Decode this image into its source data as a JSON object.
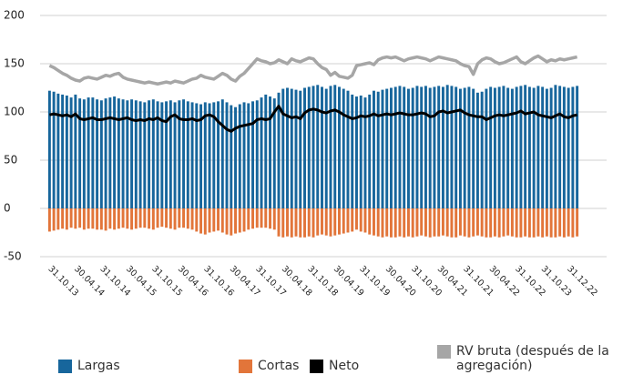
{
  "chart_data": {
    "type": "bar-line",
    "categories": [
      "31.10.13",
      null,
      null,
      null,
      null,
      null,
      "30.04.14",
      null,
      null,
      null,
      null,
      null,
      "31.10.14",
      null,
      null,
      null,
      null,
      null,
      "30.04.15",
      null,
      null,
      null,
      null,
      null,
      "31.10.15",
      null,
      null,
      null,
      null,
      null,
      "30.04.16",
      null,
      null,
      null,
      null,
      null,
      "31.10.16",
      null,
      null,
      null,
      null,
      null,
      "30.04.17",
      null,
      null,
      null,
      null,
      null,
      "31.10.17",
      null,
      null,
      null,
      null,
      null,
      "30.04.18",
      null,
      null,
      null,
      null,
      null,
      "31.10.18",
      null,
      null,
      null,
      null,
      null,
      "30.04.19",
      null,
      null,
      null,
      null,
      null,
      "31.10.19",
      null,
      null,
      null,
      null,
      null,
      "30.04.20",
      null,
      null,
      null,
      null,
      null,
      "31.10.20",
      null,
      null,
      null,
      null,
      null,
      "30.04.21",
      null,
      null,
      null,
      null,
      null,
      "31.10.21",
      null,
      null,
      null,
      null,
      null,
      "30.04.22",
      null,
      null,
      null,
      null,
      null,
      "31.10.22",
      null,
      null,
      null,
      null,
      null,
      "31.10.23",
      null,
      null,
      null,
      null,
      null,
      "31.12.22",
      null,
      null
    ],
    "series": [
      {
        "name": "Largas",
        "kind": "bar",
        "color": "#17669c",
        "values": [
          122,
          121,
          119,
          118,
          117,
          115,
          118,
          114,
          113,
          115,
          115,
          113,
          112,
          114,
          115,
          116,
          114,
          113,
          112,
          113,
          112,
          111,
          110,
          112,
          113,
          111,
          110,
          111,
          112,
          110,
          112,
          113,
          111,
          110,
          109,
          108,
          110,
          109,
          110,
          111,
          113,
          110,
          107,
          105,
          108,
          110,
          109,
          111,
          112,
          115,
          118,
          116,
          114,
          120,
          124,
          125,
          124,
          123,
          122,
          125,
          126,
          127,
          128,
          126,
          124,
          127,
          128,
          126,
          124,
          122,
          118,
          116,
          117,
          115,
          118,
          122,
          121,
          123,
          124,
          125,
          126,
          127,
          126,
          124,
          125,
          127,
          126,
          127,
          125,
          126,
          127,
          126,
          128,
          127,
          126,
          124,
          125,
          126,
          124,
          120,
          121,
          124,
          126,
          125,
          126,
          127,
          125,
          124,
          126,
          127,
          128,
          126,
          125,
          127,
          126,
          124,
          125,
          128,
          127,
          126,
          125,
          126,
          127
        ]
      },
      {
        "name": "Cortas",
        "kind": "bar",
        "color": "#e2753a",
        "values": [
          -24,
          -23,
          -22,
          -21,
          -22,
          -20,
          -21,
          -20,
          -22,
          -21,
          -21,
          -22,
          -22,
          -23,
          -21,
          -22,
          -21,
          -20,
          -21,
          -22,
          -21,
          -20,
          -20,
          -21,
          -22,
          -20,
          -19,
          -20,
          -21,
          -22,
          -20,
          -20,
          -21,
          -22,
          -24,
          -26,
          -27,
          -25,
          -24,
          -23,
          -25,
          -27,
          -28,
          -26,
          -25,
          -24,
          -22,
          -21,
          -20,
          -20,
          -20,
          -21,
          -22,
          -29,
          -30,
          -29,
          -30,
          -29,
          -30,
          -30,
          -29,
          -30,
          -28,
          -27,
          -28,
          -29,
          -28,
          -27,
          -26,
          -25,
          -24,
          -22,
          -24,
          -25,
          -27,
          -28,
          -29,
          -30,
          -29,
          -30,
          -30,
          -29,
          -30,
          -29,
          -30,
          -29,
          -28,
          -29,
          -30,
          -29,
          -29,
          -28,
          -29,
          -30,
          -30,
          -28,
          -29,
          -30,
          -29,
          -28,
          -29,
          -30,
          -30,
          -29,
          -30,
          -29,
          -28,
          -29,
          -30,
          -30,
          -29,
          -30,
          -30,
          -29,
          -30,
          -29,
          -30,
          -30,
          -29,
          -30,
          -29,
          -30,
          -29
        ]
      },
      {
        "name": "Neto",
        "kind": "line",
        "color": "#000000",
        "values": [
          97,
          98,
          97,
          96,
          97,
          95,
          98,
          93,
          92,
          93,
          94,
          92,
          92,
          93,
          94,
          93,
          92,
          93,
          94,
          92,
          91,
          92,
          91,
          93,
          92,
          94,
          91,
          90,
          95,
          97,
          93,
          92,
          92,
          93,
          91,
          92,
          96,
          97,
          95,
          90,
          86,
          82,
          80,
          83,
          85,
          86,
          87,
          88,
          92,
          93,
          92,
          93,
          100,
          106,
          98,
          96,
          94,
          95,
          93,
          99,
          102,
          103,
          102,
          100,
          99,
          101,
          102,
          100,
          97,
          95,
          93,
          94,
          96,
          95,
          96,
          98,
          96,
          97,
          98,
          97,
          98,
          99,
          98,
          97,
          97,
          98,
          99,
          98,
          95,
          96,
          100,
          101,
          99,
          100,
          101,
          102,
          99,
          97,
          96,
          95,
          95,
          92,
          94,
          96,
          97,
          96,
          97,
          98,
          99,
          101,
          98,
          99,
          100,
          97,
          96,
          95,
          94,
          96,
          98,
          95,
          94,
          96,
          97
        ]
      },
      {
        "name": "RV bruta (después de la agregación)",
        "kind": "line",
        "color": "#a6a6a6",
        "values": [
          148,
          146,
          143,
          140,
          138,
          135,
          133,
          132,
          135,
          136,
          135,
          134,
          136,
          138,
          137,
          139,
          140,
          136,
          134,
          133,
          132,
          131,
          130,
          131,
          130,
          129,
          130,
          131,
          130,
          132,
          131,
          130,
          132,
          134,
          135,
          138,
          136,
          135,
          134,
          137,
          140,
          138,
          134,
          132,
          137,
          140,
          145,
          150,
          155,
          153,
          152,
          150,
          151,
          154,
          152,
          150,
          155,
          153,
          152,
          154,
          156,
          155,
          150,
          146,
          144,
          138,
          141,
          137,
          136,
          135,
          138,
          148,
          149,
          150,
          151,
          149,
          154,
          156,
          157,
          156,
          157,
          155,
          153,
          155,
          156,
          157,
          156,
          155,
          153,
          155,
          157,
          156,
          155,
          154,
          153,
          150,
          148,
          147,
          139,
          150,
          154,
          156,
          155,
          152,
          150,
          151,
          153,
          155,
          157,
          152,
          150,
          153,
          156,
          158,
          155,
          152,
          154,
          153,
          155,
          154,
          155,
          156,
          157
        ]
      }
    ],
    "ylim": [
      -50,
      200
    ],
    "yticks": [
      -50,
      0,
      50,
      100,
      150,
      200
    ],
    "grid": true
  }
}
